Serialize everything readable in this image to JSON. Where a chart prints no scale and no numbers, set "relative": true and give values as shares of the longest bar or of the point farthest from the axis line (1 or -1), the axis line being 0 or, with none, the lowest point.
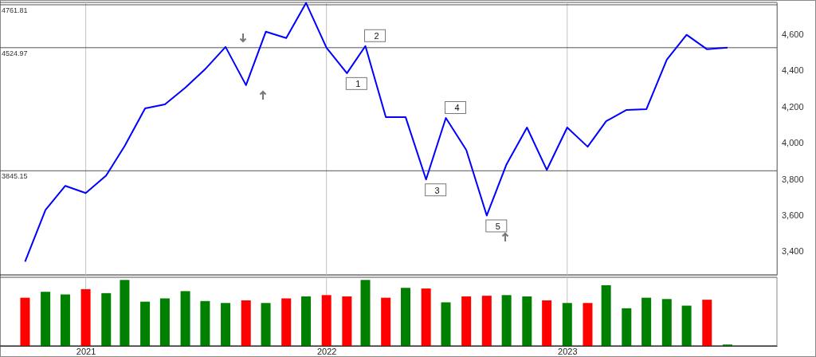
{
  "chart_data": [
    {
      "type": "line",
      "x": [
        "2020-10",
        "2020-11",
        "2020-12",
        "2021-01",
        "2021-02",
        "2021-03",
        "2021-04",
        "2021-05",
        "2021-06",
        "2021-07",
        "2021-08",
        "2021-09",
        "2021-10",
        "2021-11",
        "2021-12",
        "2022-01",
        "2022-02",
        "2022-03",
        "2022-04",
        "2022-05",
        "2022-06",
        "2022-07",
        "2022-08",
        "2022-09",
        "2022-10",
        "2022-11",
        "2022-12",
        "2023-01",
        "2023-02",
        "2023-03",
        "2023-04",
        "2023-05",
        "2023-06",
        "2023-07",
        "2023-08",
        "2023-09"
      ],
      "series": [
        {
          "color": "#0000ff",
          "values": [
            3343,
            3629,
            3762,
            3722,
            3819,
            3982,
            4190,
            4212,
            4304,
            4406,
            4529,
            4318,
            4613,
            4578,
            4772,
            4525,
            4384,
            4534,
            4141,
            4141,
            3797,
            4137,
            3960,
            3598,
            3881,
            4084,
            3850,
            4084,
            3978,
            4119,
            4181,
            4185,
            4459,
            4596,
            4516,
            4525
          ]
        }
      ],
      "xlim": [
        "2020-08-24",
        "2023-11-15"
      ],
      "xticks": [
        {
          "value": "2021-01",
          "label": null
        },
        {
          "value": "2022-01",
          "label": null
        },
        {
          "value": "2023-01",
          "label": null
        }
      ],
      "ylim": [
        3270,
        4775
      ],
      "yticks": [
        {
          "value": 3400,
          "label": "3,400"
        },
        {
          "value": 3600,
          "label": "3,600"
        },
        {
          "value": 3800,
          "label": "3,800"
        },
        {
          "value": 4000,
          "label": "4,000"
        },
        {
          "value": 4200,
          "label": "4,200"
        },
        {
          "value": 4400,
          "label": "4,400"
        },
        {
          "value": 4600,
          "label": "4,600"
        }
      ],
      "ref_lines": [
        {
          "axis": "y",
          "value": 4761.81,
          "label": "4761.81",
          "color": "#555555"
        },
        {
          "axis": "y",
          "value": 4524.97,
          "label": "4524.97",
          "color": "#555555"
        },
        {
          "axis": "y",
          "value": 3845.15,
          "label": "3845.15",
          "color": "#555555"
        }
      ],
      "annotations": [
        {
          "text": "1",
          "x": "2022-02",
          "y": 4384
        },
        {
          "text": "2",
          "x": "2022-03",
          "y": 4534
        },
        {
          "text": "3",
          "x": "2022-06",
          "y": 3797
        },
        {
          "text": "4",
          "x": "2022-07",
          "y": 4137
        },
        {
          "text": "5",
          "x": "2022-09",
          "y": 3598
        }
      ],
      "grid": "x",
      "tick_labels": "y"
    },
    {
      "type": "bar",
      "relative": true,
      "x": [
        "2020-10",
        "2020-11",
        "2020-12",
        "2021-01",
        "2021-02",
        "2021-03",
        "2021-04",
        "2021-05",
        "2021-06",
        "2021-07",
        "2021-08",
        "2021-09",
        "2021-10",
        "2021-11",
        "2021-12",
        "2022-01",
        "2022-02",
        "2022-03",
        "2022-04",
        "2022-05",
        "2022-06",
        "2022-07",
        "2022-08",
        "2022-09",
        "2022-10",
        "2022-11",
        "2022-12",
        "2023-01",
        "2023-02",
        "2023-03",
        "2023-04",
        "2023-05",
        "2023-06",
        "2023-07",
        "2023-08",
        "2023-09"
      ],
      "values": [
        0.73,
        0.82,
        0.78,
        0.86,
        0.8,
        1.0,
        0.67,
        0.72,
        0.83,
        0.68,
        0.65,
        0.69,
        0.65,
        0.72,
        0.75,
        0.77,
        0.75,
        1.0,
        0.73,
        0.88,
        0.87,
        0.66,
        0.75,
        0.76,
        0.77,
        0.75,
        0.69,
        0.65,
        0.65,
        0.92,
        0.57,
        0.73,
        0.71,
        0.61,
        0.7,
        0.02
      ],
      "colors": [
        "#ff0000",
        "#008000",
        "#008000",
        "#ff0000",
        "#008000",
        "#008000",
        "#008000",
        "#008000",
        "#008000",
        "#008000",
        "#008000",
        "#ff0000",
        "#008000",
        "#ff0000",
        "#008000",
        "#ff0000",
        "#ff0000",
        "#008000",
        "#ff0000",
        "#008000",
        "#ff0000",
        "#008000",
        "#ff0000",
        "#ff0000",
        "#008000",
        "#008000",
        "#ff0000",
        "#008000",
        "#ff0000",
        "#008000",
        "#008000",
        "#008000",
        "#008000",
        "#008000",
        "#ff0000",
        "#008000"
      ],
      "xlim": [
        "2020-08-24",
        "2023-11-15"
      ],
      "xticks": [
        {
          "value": "2021-01",
          "label": "2021"
        },
        {
          "value": "2022-01",
          "label": "2022"
        },
        {
          "value": "2023-01",
          "label": "2023"
        }
      ],
      "grid": "x",
      "tick_labels": "x"
    }
  ]
}
